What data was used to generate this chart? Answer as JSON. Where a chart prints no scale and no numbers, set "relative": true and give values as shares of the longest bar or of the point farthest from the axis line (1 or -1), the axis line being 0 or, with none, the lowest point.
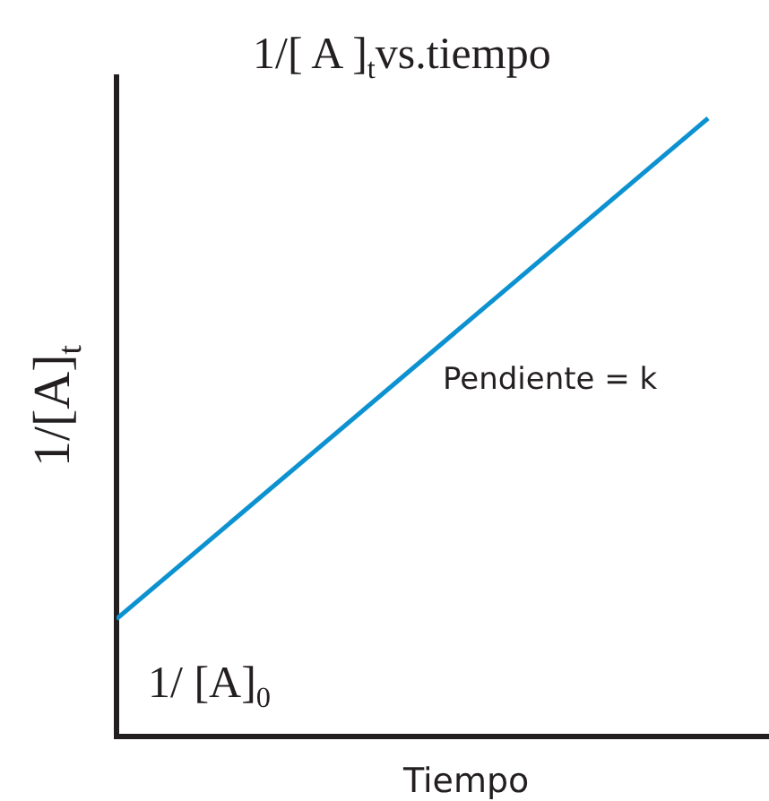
{
  "chart_data": {
    "type": "line",
    "title": "1/[ A ]$_{t}$vs.tiempo",
    "xlabel": "Tiempo",
    "ylabel": "1/[A]$_{t}$",
    "annotations": [
      "Pendiente = k",
      "1/ [A]$_{0}$"
    ],
    "categories": [
      null,
      null
    ],
    "values": [
      0.19,
      1
    ],
    "color": "#0c92d0",
    "relative": true,
    "grid": false,
    "legend": false
  }
}
